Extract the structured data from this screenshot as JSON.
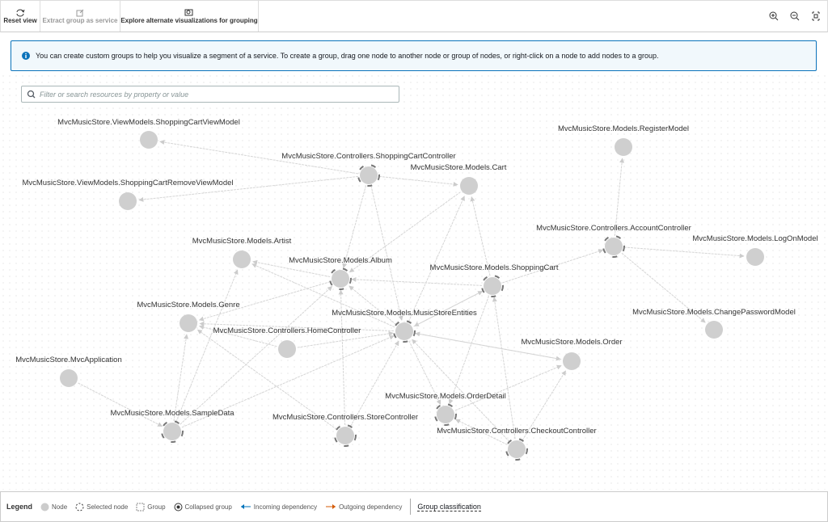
{
  "toolbar": {
    "buttons": [
      "Reset view",
      "Extract group as service",
      "Explore alternate visualizations for grouping"
    ]
  },
  "info": {
    "message": "You can create custom groups to help you visualize a segment of a service. To create a group, drag one node to another node or group of nodes, or right-click on a node to add nodes to a group."
  },
  "search": {
    "placeholder": "Filter or search resources by property or value"
  },
  "nodes": [
    {
      "label": "MvcMusicStore.ViewModels.ShoppingCartViewModel"
    },
    {
      "label": "MvcMusicStore.Controllers.ShoppingCartController"
    },
    {
      "label": "MvcMusicStore.Models.RegisterModel"
    },
    {
      "label": "MvcMusicStore.Models.Cart"
    },
    {
      "label": "MvcMusicStore.ViewModels.ShoppingCartRemoveViewModel"
    },
    {
      "label": "MvcMusicStore.Controllers.AccountController"
    },
    {
      "label": "MvcMusicStore.Models.LogOnModel"
    },
    {
      "label": "MvcMusicStore.Models.Artist"
    },
    {
      "label": "MvcMusicStore.Models.Album"
    },
    {
      "label": "MvcMusicStore.Models.ShoppingCart"
    },
    {
      "label": "MvcMusicStore.Models.Genre"
    },
    {
      "label": "MvcMusicStore.Models.MusicStoreEntities"
    },
    {
      "label": "MvcMusicStore.Models.ChangePasswordModel"
    },
    {
      "label": "MvcMusicStore.Controllers.HomeController"
    },
    {
      "label": "MvcMusicStore.Models.Order"
    },
    {
      "label": "MvcMusicStore.MvcApplication"
    },
    {
      "label": "MvcMusicStore.Models.OrderDetail"
    },
    {
      "label": "MvcMusicStore.Models.SampleData"
    },
    {
      "label": "MvcMusicStore.Controllers.StoreController"
    },
    {
      "label": "MvcMusicStore.Controllers.CheckoutController"
    }
  ],
  "legend": {
    "title": "Legend",
    "items": [
      "Node",
      "Selected node",
      "Group",
      "Collapsed group",
      "Incoming dependency",
      "Outgoing dependency"
    ],
    "classification": "Group classification"
  }
}
